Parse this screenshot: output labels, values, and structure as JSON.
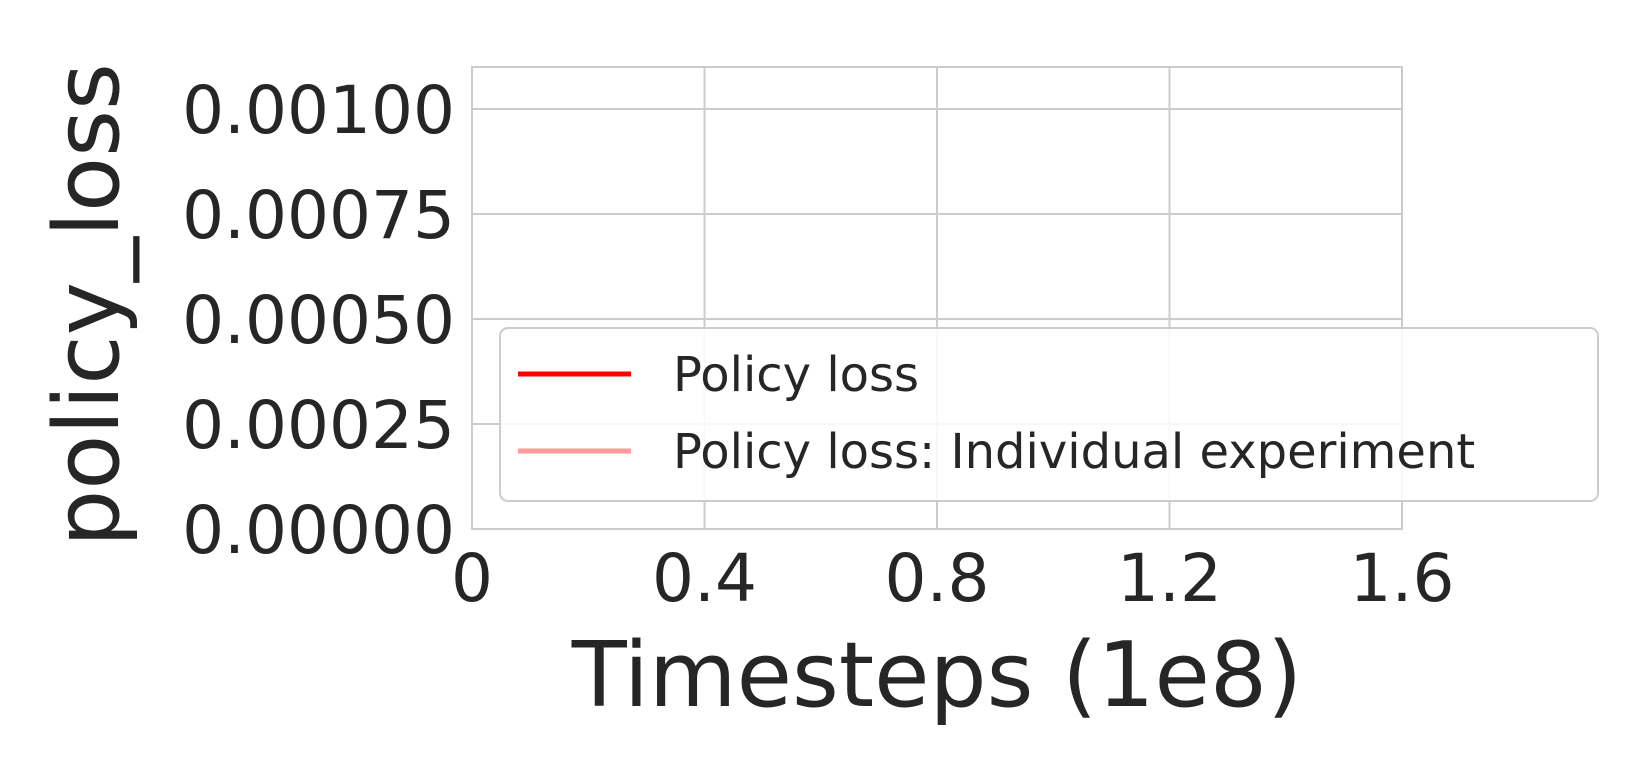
{
  "chart_data": {
    "type": "line",
    "title": "",
    "xlabel": "Timesteps (1e8)",
    "ylabel": "policy_loss",
    "xlim": [
      0,
      1.6
    ],
    "ylim": [
      0,
      0.0011
    ],
    "x_ticks": [
      0,
      0.4,
      0.8,
      1.2,
      1.6
    ],
    "x_tick_labels": [
      "0",
      "0.4",
      "0.8",
      "1.2",
      "1.6"
    ],
    "y_ticks": [
      0,
      0.00025,
      0.0005,
      0.00075,
      0.001
    ],
    "y_tick_labels": [
      "0.00000",
      "0.00025",
      "0.00050",
      "0.00075",
      "0.00100"
    ],
    "grid": true,
    "legend_position": "lower-right",
    "series": [
      {
        "name": "Policy loss",
        "color": "#ff0000",
        "x": [],
        "y": []
      },
      {
        "name": "Policy loss: Individual experiment",
        "color": "#ff9a9a",
        "x": [],
        "y": []
      }
    ]
  },
  "colors": {
    "grid": "#cccccc",
    "text": "#262626",
    "legend_border": "#cccccc"
  }
}
